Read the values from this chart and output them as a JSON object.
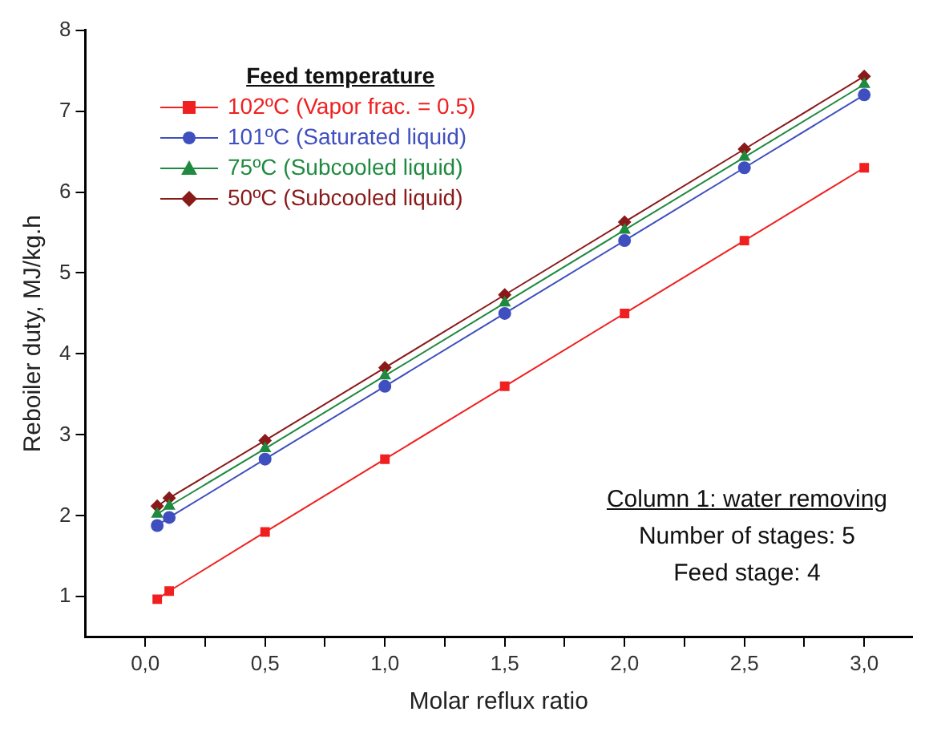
{
  "chart_data": {
    "type": "line",
    "xlabel": "Molar reflux ratio",
    "ylabel": "Reboiler duty, MJ/kg.h",
    "legend_title": "Feed temperature",
    "legend": "top left",
    "grid": false,
    "line_style": "solid",
    "x": [
      0.05,
      0.1,
      0.5,
      1,
      1.5,
      2,
      2.5,
      3
    ],
    "series": [
      {
        "name": "102ºC (Vapor frac. = 0.5)",
        "color": "#f02020",
        "marker": "square",
        "values": [
          0.97,
          1.07,
          1.8,
          2.7,
          3.6,
          4.5,
          5.4,
          6.3
        ]
      },
      {
        "name": "101ºC (Saturated liquid)",
        "color": "#3f4fbf",
        "marker": "circle",
        "values": [
          1.88,
          1.98,
          2.7,
          3.6,
          4.5,
          5.4,
          6.3,
          7.2
        ]
      },
      {
        "name": "75ºC (Subcooled liquid)",
        "color": "#1f8a3f",
        "marker": "triangle",
        "values": [
          2.02,
          2.12,
          2.83,
          3.73,
          4.63,
          5.53,
          6.43,
          7.33
        ]
      },
      {
        "name": "50ºC (Subcooled liquid)",
        "color": "#8a1a1a",
        "marker": "diamond",
        "values": [
          2.12,
          2.22,
          2.93,
          3.83,
          4.73,
          5.63,
          6.53,
          7.43
        ]
      }
    ],
    "xlim": [
      -0.25,
      3.2
    ],
    "xticks": [
      {
        "value": 0,
        "label": "0,0"
      },
      {
        "value": 0.25,
        "label": null
      },
      {
        "value": 0.5,
        "label": "0,5"
      },
      {
        "value": 0.75,
        "label": null
      },
      {
        "value": 1,
        "label": "1,0"
      },
      {
        "value": 1.25,
        "label": null
      },
      {
        "value": 1.5,
        "label": "1,5"
      },
      {
        "value": 1.75,
        "label": null
      },
      {
        "value": 2,
        "label": "2,0"
      },
      {
        "value": 2.25,
        "label": null
      },
      {
        "value": 2.5,
        "label": "2,5"
      },
      {
        "value": 2.75,
        "label": null
      },
      {
        "value": 3,
        "label": "3,0"
      }
    ],
    "ylim": [
      0.5,
      8
    ],
    "yticks": [
      1,
      2,
      3,
      4,
      5,
      6,
      7,
      8
    ],
    "annotations": [
      "Column 1: water removing",
      "Number of stages: 5",
      "Feed stage: 4"
    ]
  }
}
